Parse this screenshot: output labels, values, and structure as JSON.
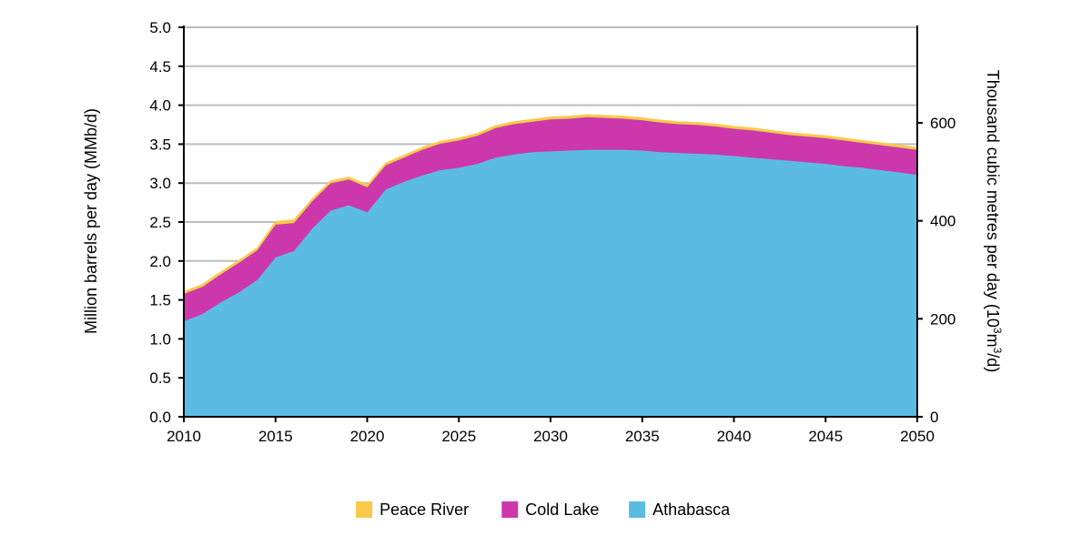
{
  "chart_data": {
    "type": "area",
    "stacked": true,
    "title": "",
    "xlabel": "",
    "ylabel": "Million barrels per day (MMb/d)",
    "ylabel_right": "Thousand cubic metres per day (10³m³/d)",
    "xlim": [
      2010,
      2050
    ],
    "ylim": [
      0,
      5.0
    ],
    "ylim_right": [
      0,
      795
    ],
    "x_ticks": [
      "2010",
      "2015",
      "2020",
      "2025",
      "2030",
      "2035",
      "2040",
      "2045",
      "2050"
    ],
    "y_ticks": [
      "0.0",
      "0.5",
      "1.0",
      "1.5",
      "2.0",
      "2.5",
      "3.0",
      "3.5",
      "4.0",
      "4.5",
      "5.0"
    ],
    "y_ticks_right": [
      "0",
      "200",
      "400",
      "600"
    ],
    "grid": "horizontal",
    "legend_position": "bottom-center",
    "x": [
      2010,
      2011,
      2012,
      2013,
      2014,
      2015,
      2016,
      2017,
      2018,
      2019,
      2020,
      2021,
      2022,
      2023,
      2024,
      2025,
      2026,
      2027,
      2028,
      2029,
      2030,
      2031,
      2032,
      2033,
      2034,
      2035,
      2036,
      2037,
      2038,
      2039,
      2040,
      2041,
      2042,
      2043,
      2044,
      2045,
      2046,
      2047,
      2048,
      2049,
      2050
    ],
    "series": [
      {
        "name": "Athabasca",
        "color": "#5bbbe3",
        "values": [
          1.23,
          1.32,
          1.47,
          1.6,
          1.76,
          2.05,
          2.13,
          2.42,
          2.65,
          2.72,
          2.63,
          2.92,
          3.02,
          3.1,
          3.17,
          3.2,
          3.25,
          3.33,
          3.37,
          3.4,
          3.41,
          3.42,
          3.43,
          3.43,
          3.43,
          3.42,
          3.4,
          3.39,
          3.38,
          3.37,
          3.35,
          3.33,
          3.31,
          3.29,
          3.27,
          3.25,
          3.22,
          3.2,
          3.17,
          3.14,
          3.11
        ]
      },
      {
        "name": "Cold Lake",
        "color": "#cc37ac",
        "values": [
          0.35,
          0.35,
          0.36,
          0.38,
          0.38,
          0.42,
          0.36,
          0.35,
          0.35,
          0.33,
          0.32,
          0.31,
          0.31,
          0.33,
          0.34,
          0.35,
          0.36,
          0.38,
          0.39,
          0.39,
          0.41,
          0.41,
          0.42,
          0.41,
          0.4,
          0.39,
          0.38,
          0.37,
          0.37,
          0.36,
          0.35,
          0.35,
          0.34,
          0.33,
          0.33,
          0.33,
          0.33,
          0.32,
          0.32,
          0.32,
          0.32
        ]
      },
      {
        "name": "Peace River",
        "color": "#f8c94b",
        "values": [
          0.03,
          0.03,
          0.03,
          0.03,
          0.03,
          0.04,
          0.04,
          0.03,
          0.03,
          0.03,
          0.03,
          0.03,
          0.03,
          0.03,
          0.03,
          0.03,
          0.03,
          0.03,
          0.03,
          0.03,
          0.03,
          0.03,
          0.03,
          0.03,
          0.03,
          0.03,
          0.03,
          0.03,
          0.03,
          0.03,
          0.03,
          0.03,
          0.03,
          0.03,
          0.03,
          0.03,
          0.03,
          0.03,
          0.03,
          0.03,
          0.03
        ]
      }
    ],
    "legend_order": [
      "Peace River",
      "Cold Lake",
      "Athabasca"
    ]
  }
}
